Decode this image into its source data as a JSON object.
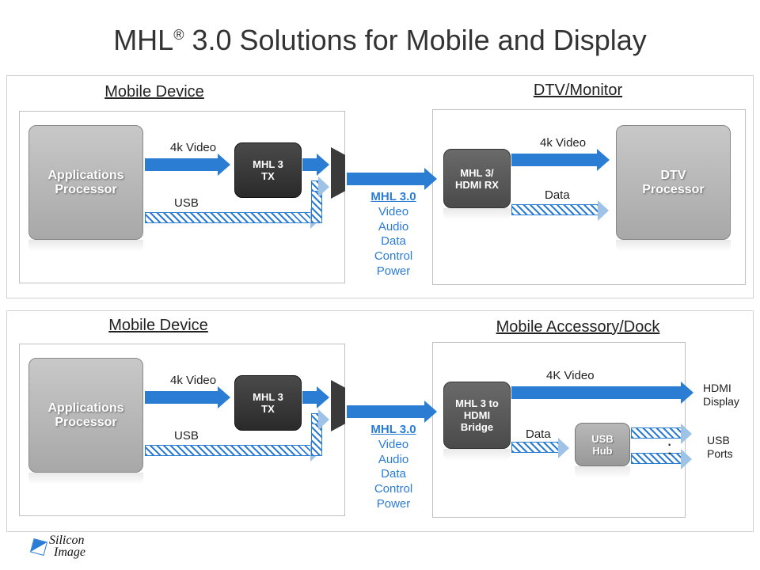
{
  "title_pre": "MHL",
  "title_sup": "®",
  "title_post": " 3.0 Solutions for Mobile and Display",
  "colors": {
    "arrow": "#2b7cd3",
    "block_dark": "#3a3a3a",
    "block_light": "#b0b0b0"
  },
  "panel1": {
    "mobile_label": "Mobile Device",
    "right_label": "DTV/Monitor",
    "app_proc": "Applications Processor",
    "tx": "MHL 3 TX",
    "rx": "MHL 3/ HDMI RX",
    "dtv": "DTV Processor",
    "video_label": "4k Video",
    "usb_label": "USB",
    "rx_top": "4k Video",
    "rx_bot": "Data"
  },
  "panel2": {
    "mobile_label": "Mobile Device",
    "right_label": "Mobile Accessory/Dock",
    "app_proc": "Applications Processor",
    "tx": "MHL 3 TX",
    "bridge": "MHL 3 to HDMI Bridge",
    "hub": "USB Hub",
    "video_label": "4k Video",
    "usb_label": "USB",
    "out_top": "4K Video",
    "out_bot": "Data",
    "ext1": "HDMI Display",
    "ext2": "USB Ports"
  },
  "mhl": {
    "title": "MHL 3.0",
    "l1": "Video",
    "l2": "Audio",
    "l3": "Data",
    "l4": "Control",
    "l5": "Power"
  },
  "logo": "Silicon Image"
}
